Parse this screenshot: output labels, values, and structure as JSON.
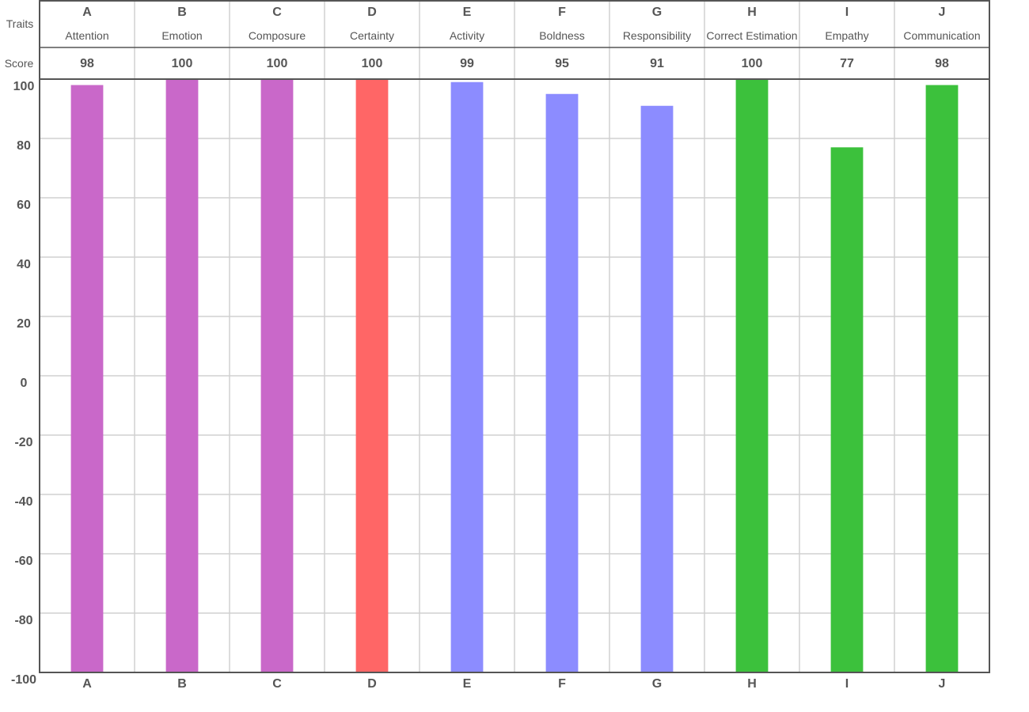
{
  "chart_data": {
    "type": "bar",
    "header_row_labels": {
      "traits": "Traits",
      "score": "Score"
    },
    "categories": [
      "A",
      "B",
      "C",
      "D",
      "E",
      "F",
      "G",
      "H",
      "I",
      "J"
    ],
    "trait_names": [
      "Attention",
      "Emotion",
      "Composure",
      "Certainty",
      "Activity",
      "Boldness",
      "Responsibility",
      "Correct Estimation",
      "Empathy",
      "Communication"
    ],
    "values": [
      98,
      100,
      100,
      100,
      99,
      95,
      91,
      100,
      77,
      98
    ],
    "colors": [
      "#c968c9",
      "#c968c9",
      "#c968c9",
      "#ff6666",
      "#8c8cff",
      "#8c8cff",
      "#8c8cff",
      "#3cc13c",
      "#3cc13c",
      "#3cc13c"
    ],
    "ylim": [
      -100,
      100
    ],
    "yticks": [
      100,
      80,
      60,
      40,
      20,
      0,
      -20,
      -40,
      -60,
      -80,
      -100
    ],
    "grid": true,
    "title": "",
    "xlabel": "",
    "ylabel": ""
  }
}
